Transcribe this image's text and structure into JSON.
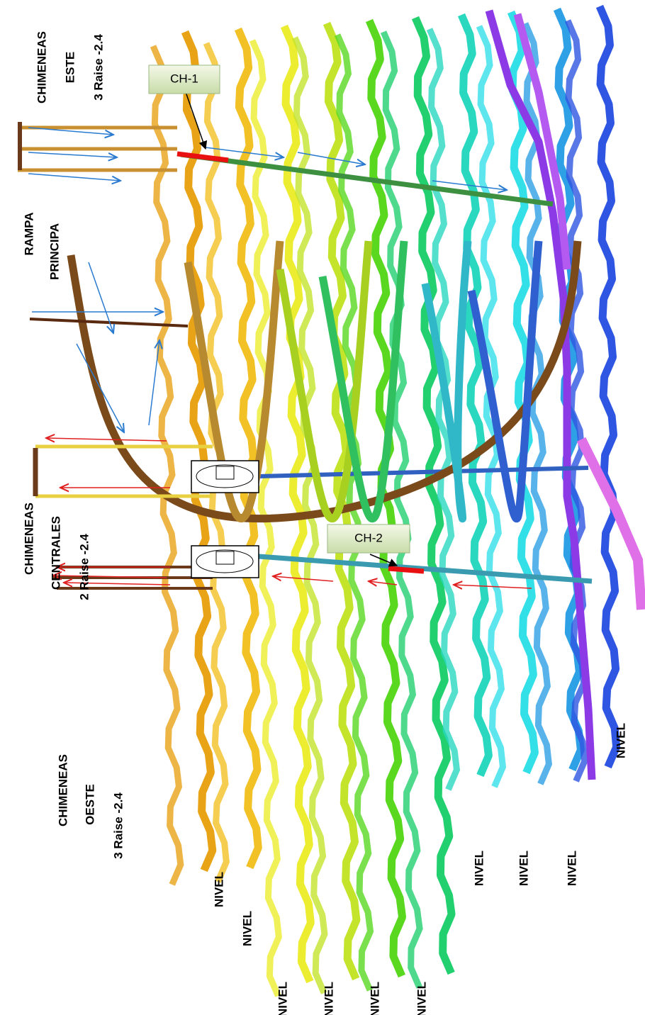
{
  "labels": {
    "este": [
      "CHIMENEAS",
      "ESTE",
      "3 Raise -2.4"
    ],
    "rampa": [
      "RAMPA",
      "PRINCIPA"
    ],
    "centrales": [
      "CHIMENEAS",
      "CENTRALES",
      "2 Raise -2.4"
    ],
    "oeste": [
      "CHIMENEAS",
      "OESTE",
      "3 Raise -2.4"
    ]
  },
  "callouts": [
    "CH-1",
    "CH-2"
  ],
  "levels": [
    "NIVEL",
    "NIVEL",
    "NIVEL",
    "NIVEL",
    "NIVEL",
    "NIVEL",
    "NIVEL",
    "NIVEL",
    "NIVEL",
    "NIVEL"
  ]
}
